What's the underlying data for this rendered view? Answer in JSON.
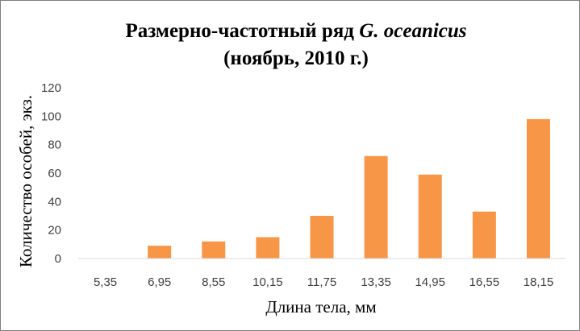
{
  "chart_data": {
    "type": "bar",
    "title": "Размерно-частотный ряд",
    "title_species": "G. oceanicus",
    "subtitle": "(ноябрь, 2010 г.)",
    "xlabel": "Длина тела, мм",
    "ylabel": "Количество особей, экз.",
    "categories": [
      "5,35",
      "6,95",
      "8,55",
      "10,15",
      "11,75",
      "13,35",
      "14,95",
      "16,55",
      "18,15"
    ],
    "values": [
      0,
      9,
      12,
      15,
      30,
      72,
      59,
      33,
      98
    ],
    "ylim": [
      0,
      120
    ],
    "yticks": [
      "0",
      "20",
      "40",
      "60",
      "80",
      "100",
      "120"
    ],
    "grid": false,
    "legend": "none",
    "bar_color": "#F79646",
    "axis_color": "#D9D9D9"
  }
}
